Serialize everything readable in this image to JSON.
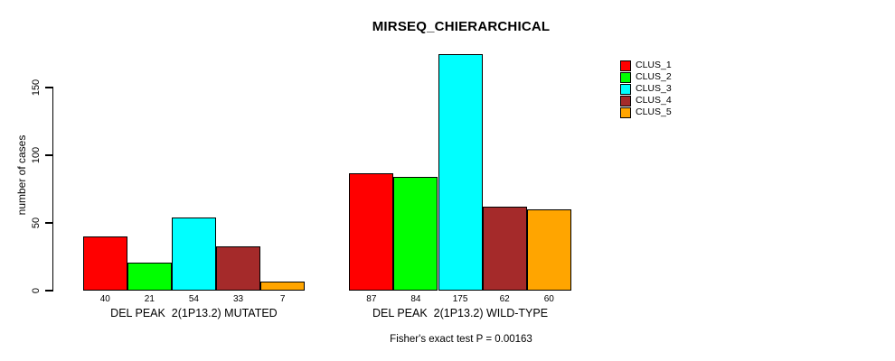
{
  "chart_data": {
    "type": "bar",
    "title": "MIRSEQ_CHIERARCHICAL",
    "ylabel": "number of cases",
    "ylim": [
      0,
      175
    ],
    "y_ticks": [
      0,
      50,
      100,
      150
    ],
    "grid": false,
    "legend_position": "top-right",
    "categories": [
      "DEL PEAK  2(1P13.2) MUTATED",
      "DEL PEAK  2(1P13.2) WILD-TYPE"
    ],
    "series": [
      {
        "name": "CLUS_1",
        "color": "#ff0000",
        "values": [
          40,
          87
        ]
      },
      {
        "name": "CLUS_2",
        "color": "#00ff00",
        "values": [
          21,
          84
        ]
      },
      {
        "name": "CLUS_3",
        "color": "#00ffff",
        "values": [
          54,
          175
        ]
      },
      {
        "name": "CLUS_4",
        "color": "#a52a2a",
        "values": [
          33,
          62
        ]
      },
      {
        "name": "CLUS_5",
        "color": "#ffa500",
        "values": [
          7,
          60
        ]
      }
    ],
    "bar_value_labels": [
      [
        "40",
        "21",
        "54",
        "33",
        "7"
      ],
      [
        "87",
        "84",
        "175",
        "62",
        "60"
      ]
    ],
    "annotation": "Fisher's exact test P = 0.00163"
  }
}
